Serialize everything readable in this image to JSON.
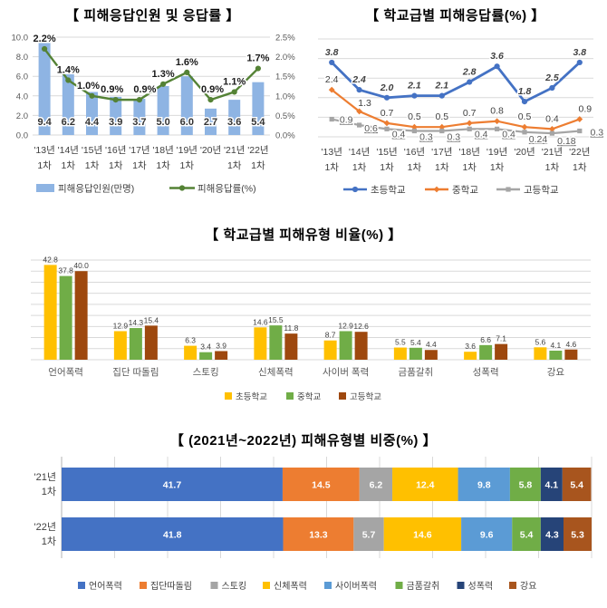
{
  "chart_data": [
    {
      "id": "victim-respondents-and-rate",
      "type": "combo-bar-line",
      "title": "【 피해응답인원 및 응답률 】",
      "categories": [
        "'13년",
        "'14년",
        "'15년",
        "'16년",
        "'17년",
        "'18년",
        "'19년",
        "'20년",
        "'21년",
        "'22년"
      ],
      "categories_line2": [
        "1차",
        "1차",
        "1차",
        "1차",
        "1차",
        "1차",
        "1차",
        "",
        "1차",
        "1차"
      ],
      "bar_series": {
        "name": "피해응답인원(만명)",
        "color": "#8EB4E3",
        "values": [
          9.4,
          6.2,
          4.4,
          3.9,
          3.7,
          5.0,
          6.0,
          2.7,
          3.6,
          5.4
        ]
      },
      "line_series": {
        "name": "피해응답률(%)",
        "color": "#548235",
        "values": [
          2.2,
          1.4,
          1.0,
          0.9,
          0.9,
          1.3,
          1.6,
          0.9,
          1.1,
          1.7
        ],
        "labels": [
          "2.2%",
          "1.4%",
          "1.0%",
          "0.9%",
          "0.9%",
          "1.3%",
          "1.6%",
          "0.9%",
          "1.1%",
          "1.7%"
        ]
      },
      "left_axis": {
        "min": 0,
        "max": 10,
        "ticks": [
          "0.0",
          "2.0",
          "4.0",
          "6.0",
          "8.0",
          "10.0"
        ]
      },
      "right_axis": {
        "min": 0,
        "max": 2.5,
        "ticks": [
          "0.0%",
          "0.5%",
          "1.0%",
          "1.5%",
          "2.0%",
          "2.5%"
        ]
      },
      "grid": true,
      "legend_position": "bottom"
    },
    {
      "id": "victim-rate-by-school-level",
      "type": "line",
      "title": "【 학교급별 피해응답률(%) 】",
      "categories": [
        "'13년",
        "'14년",
        "'15년",
        "'16년",
        "'17년",
        "'18년",
        "'19년",
        "'20년",
        "'21년",
        "'22년"
      ],
      "categories_line2": [
        "1차",
        "1차",
        "1차",
        "1차",
        "1차",
        "1차",
        "1차",
        "",
        "1차",
        "1차"
      ],
      "ylim": [
        0,
        5
      ],
      "series": [
        {
          "name": "초등학교",
          "color": "#4472C4",
          "marker": "circle",
          "values": [
            3.8,
            2.4,
            2.0,
            2.1,
            2.1,
            2.8,
            3.6,
            1.8,
            2.5,
            3.8
          ],
          "labels": [
            "3.8",
            "2.4",
            "2.0",
            "2.1",
            "2.1",
            "2.8",
            "3.6",
            "1.8",
            "2.5",
            "3.8"
          ],
          "label_style": "bold-italic"
        },
        {
          "name": "중학교",
          "color": "#ED7D31",
          "marker": "diamond",
          "values": [
            2.4,
            1.3,
            0.7,
            0.5,
            0.5,
            0.7,
            0.8,
            0.5,
            0.4,
            0.9
          ],
          "labels": [
            "2.4",
            "1.3",
            "0.7",
            "0.5",
            "0.5",
            "0.7",
            "0.8",
            "0.5",
            "0.4",
            "0.9"
          ],
          "label_style": "plain"
        },
        {
          "name": "고등학교",
          "color": "#A5A5A5",
          "marker": "square",
          "values": [
            0.9,
            0.6,
            0.4,
            0.3,
            0.3,
            0.4,
            0.4,
            0.24,
            0.18,
            0.3
          ],
          "labels": [
            "0.9",
            "0.6",
            "0.4",
            "0.3",
            "0.3",
            "0.4",
            "0.4",
            "0.24",
            "0.18",
            "0.3"
          ],
          "label_style": "underline"
        }
      ],
      "grid": true,
      "legend_position": "bottom"
    },
    {
      "id": "victim-type-ratio-by-school-level",
      "type": "bar",
      "title": "【 학교급별 피해유형 비율(%) 】",
      "categories": [
        "언어폭력",
        "집단 따돌림",
        "스토킹",
        "신체폭력",
        "사이버 폭력",
        "금품갈취",
        "성폭력",
        "강요"
      ],
      "series": [
        {
          "name": "초등학교",
          "color": "#FFC000",
          "values": [
            42.8,
            12.9,
            6.3,
            14.6,
            8.7,
            5.5,
            3.6,
            5.6
          ]
        },
        {
          "name": "중학교",
          "color": "#70AD47",
          "values": [
            37.8,
            14.3,
            3.4,
            15.5,
            12.9,
            5.4,
            6.6,
            4.1
          ]
        },
        {
          "name": "고등학교",
          "color": "#9E480E",
          "values": [
            40.0,
            15.4,
            3.9,
            11.8,
            12.6,
            4.4,
            7.1,
            4.6
          ]
        }
      ],
      "ylim": [
        0,
        45
      ],
      "grid_step": 5,
      "grid": true,
      "legend_position": "bottom"
    },
    {
      "id": "victim-type-share-2021-2022",
      "type": "stacked-bar-horizontal",
      "title": "【 (2021년~2022년) 피해유형별 비중(%) 】",
      "rows": [
        {
          "label_line1": "'21년",
          "label_line2": "1차",
          "values": [
            41.7,
            14.5,
            6.2,
            12.4,
            9.8,
            5.8,
            4.1,
            5.4
          ]
        },
        {
          "label_line1": "'22년",
          "label_line2": "1차",
          "values": [
            41.8,
            13.3,
            5.7,
            14.6,
            9.6,
            5.4,
            4.3,
            5.3
          ]
        }
      ],
      "segments": [
        {
          "name": "언어폭력",
          "color": "#4472C4"
        },
        {
          "name": "집단따돌림",
          "color": "#ED7D31"
        },
        {
          "name": "스토킹",
          "color": "#A5A5A5"
        },
        {
          "name": "신체폭력",
          "color": "#FFC000"
        },
        {
          "name": "사이버폭력",
          "color": "#5B9BD5"
        },
        {
          "name": "금품갈취",
          "color": "#70AD47"
        },
        {
          "name": "성폭력",
          "color": "#264478"
        },
        {
          "name": "강요",
          "color": "#A8551E"
        }
      ],
      "xlim": [
        0,
        100
      ],
      "grid": true,
      "legend_position": "bottom"
    }
  ],
  "colors": {
    "gridline": "#D9D9D9",
    "axis_line": "#BFBFBF",
    "tick_label": "#595959",
    "data_label": "#404040",
    "bar_value_label": "#333333"
  }
}
